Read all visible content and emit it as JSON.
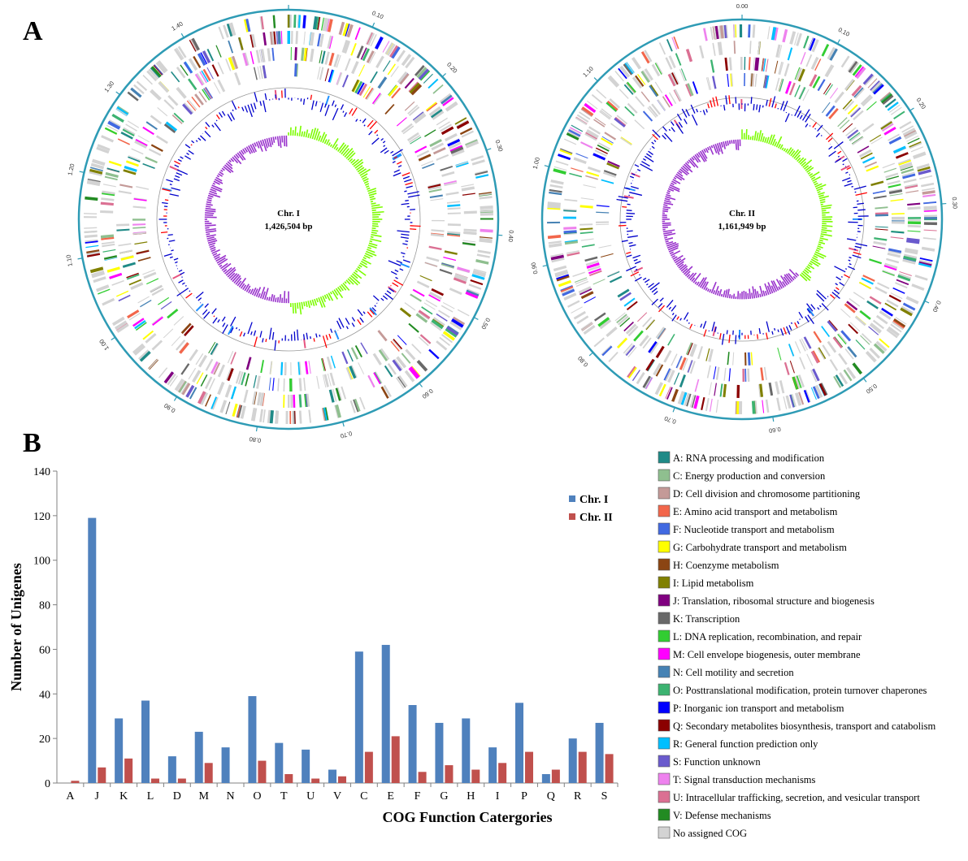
{
  "panels": {
    "a_label": "A",
    "b_label": "B"
  },
  "genome_maps": [
    {
      "name": "Chr. I",
      "size_label": "1,426,504 bp",
      "tick_labels": [
        "0.00",
        "0.10",
        "0.20",
        "0.30",
        "0.40",
        "0.50",
        "0.60",
        "0.70",
        "0.80",
        "0.90",
        "1.00",
        "1.10",
        "1.20",
        "1.30",
        "1.40"
      ],
      "seed": 7
    },
    {
      "name": "Chr. II",
      "size_label": "1,161,949 bp",
      "tick_labels": [
        "0.00",
        "0.10",
        "0.20",
        "0.30",
        "0.40",
        "0.50",
        "0.60",
        "0.70",
        "0.80",
        "0.90",
        "1.00",
        "1.10"
      ],
      "seed": 19
    }
  ],
  "chart_data": {
    "type": "bar",
    "title": "",
    "xlabel": "COG Function Catergories",
    "ylabel": "Number of Unigenes",
    "ylim": [
      0,
      140
    ],
    "yticks": [
      0,
      20,
      40,
      60,
      80,
      100,
      120,
      140
    ],
    "grid": false,
    "legend_position": "top-right",
    "categories": [
      "A",
      "J",
      "K",
      "L",
      "D",
      "M",
      "N",
      "O",
      "T",
      "U",
      "V",
      "C",
      "E",
      "F",
      "G",
      "H",
      "I",
      "P",
      "Q",
      "R",
      "S"
    ],
    "series": [
      {
        "name": "Chr. I",
        "color": "#4F81BD",
        "values": [
          0,
          119,
          29,
          37,
          12,
          23,
          16,
          39,
          18,
          15,
          6,
          59,
          62,
          35,
          27,
          29,
          16,
          36,
          4,
          20,
          27
        ]
      },
      {
        "name": "Chr. II",
        "color": "#C0504D",
        "values": [
          1,
          7,
          11,
          2,
          2,
          9,
          0,
          10,
          4,
          2,
          3,
          14,
          21,
          5,
          8,
          6,
          9,
          14,
          6,
          14,
          13
        ]
      }
    ]
  },
  "cog_legend": [
    {
      "label": "A: RNA processing and modification",
      "color": "#1F8A87"
    },
    {
      "label": "C: Energy production and conversion",
      "color": "#8FBF8F"
    },
    {
      "label": "D: Cell division and chromosome partitioning",
      "color": "#C49A98"
    },
    {
      "label": "E: Amino acid transport and metabolism",
      "color": "#F2664B"
    },
    {
      "label": "F: Nucleotide transport and metabolism",
      "color": "#4169E1"
    },
    {
      "label": "G: Carbohydrate transport and metabolism",
      "color": "#FFFF00"
    },
    {
      "label": "H: Coenzyme metabolism",
      "color": "#8B4513"
    },
    {
      "label": "I: Lipid metabolism",
      "color": "#808000"
    },
    {
      "label": "J: Translation, ribosomal structure and biogenesis",
      "color": "#800080"
    },
    {
      "label": "K: Transcription",
      "color": "#696969"
    },
    {
      "label": "L: DNA replication, recombination, and repair",
      "color": "#32CD32"
    },
    {
      "label": "M: Cell envelope biogenesis, outer membrane",
      "color": "#FF00FF"
    },
    {
      "label": "N: Cell motility and secretion",
      "color": "#4682B4"
    },
    {
      "label": "O: Posttranslational modification, protein turnover chaperones",
      "color": "#3CB371"
    },
    {
      "label": "P: Inorganic ion transport and metabolism",
      "color": "#0000FF"
    },
    {
      "label": "Q: Secondary metabolites biosynthesis, transport and catabolism",
      "color": "#8B0000"
    },
    {
      "label": "R: General function prediction only",
      "color": "#00BFFF"
    },
    {
      "label": "S: Function unknown",
      "color": "#6A5ACD"
    },
    {
      "label": "T: Signal transduction mechanisms",
      "color": "#EE82EE"
    },
    {
      "label": "U: Intracellular trafficking, secretion, and vesicular transport",
      "color": "#DB7093"
    },
    {
      "label": "V: Defense mechanisms",
      "color": "#228B22"
    },
    {
      "label": "No assigned COG",
      "color": "#D3D3D3"
    }
  ]
}
